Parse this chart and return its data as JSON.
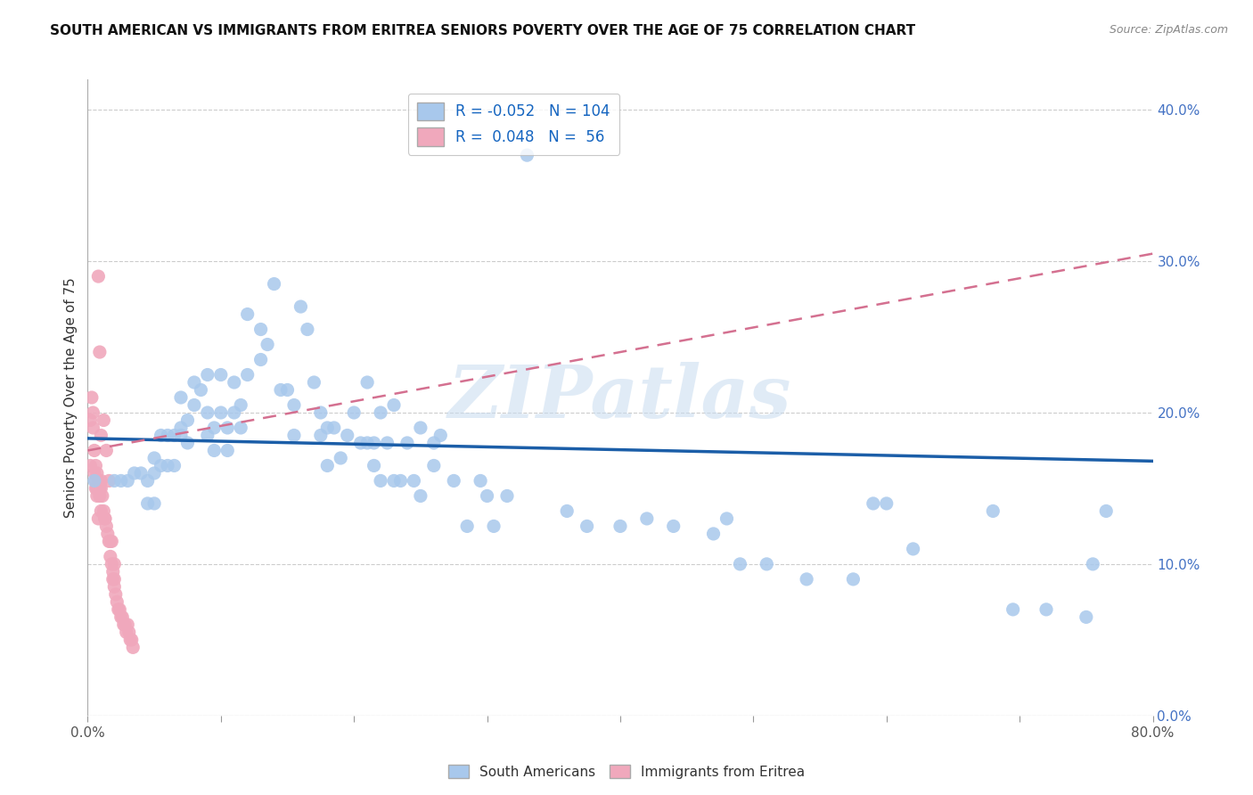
{
  "title": "SOUTH AMERICAN VS IMMIGRANTS FROM ERITREA SENIORS POVERTY OVER THE AGE OF 75 CORRELATION CHART",
  "source": "Source: ZipAtlas.com",
  "ylabel": "Seniors Poverty Over the Age of 75",
  "xmin": 0.0,
  "xmax": 0.8,
  "ymin": 0.0,
  "ymax": 0.42,
  "xtick_labels_left": "0.0%",
  "xtick_labels_right": "80.0%",
  "yticks": [
    0.0,
    0.1,
    0.2,
    0.3,
    0.4
  ],
  "blue_R": -0.052,
  "blue_N": 104,
  "pink_R": 0.048,
  "pink_N": 56,
  "blue_color": "#A8C8EC",
  "pink_color": "#F0A8BC",
  "blue_line_color": "#1B5EA8",
  "pink_line_color": "#D47090",
  "legend_label_blue": "South Americans",
  "legend_label_pink": "Immigrants from Eritrea",
  "watermark": "ZIPatlas",
  "blue_line_x0": 0.0,
  "blue_line_y0": 0.183,
  "blue_line_x1": 0.8,
  "blue_line_y1": 0.168,
  "pink_line_x0": 0.0,
  "pink_line_y0": 0.175,
  "pink_line_x1": 0.8,
  "pink_line_y1": 0.305,
  "blue_scatter_x": [
    0.005,
    0.02,
    0.025,
    0.03,
    0.035,
    0.04,
    0.045,
    0.045,
    0.05,
    0.05,
    0.05,
    0.055,
    0.055,
    0.06,
    0.06,
    0.065,
    0.065,
    0.07,
    0.07,
    0.07,
    0.075,
    0.075,
    0.08,
    0.08,
    0.085,
    0.09,
    0.09,
    0.09,
    0.095,
    0.095,
    0.1,
    0.1,
    0.105,
    0.105,
    0.11,
    0.11,
    0.115,
    0.115,
    0.12,
    0.12,
    0.13,
    0.13,
    0.135,
    0.14,
    0.145,
    0.15,
    0.155,
    0.155,
    0.16,
    0.165,
    0.17,
    0.175,
    0.18,
    0.185,
    0.19,
    0.195,
    0.2,
    0.205,
    0.21,
    0.215,
    0.215,
    0.22,
    0.225,
    0.23,
    0.235,
    0.24,
    0.245,
    0.25,
    0.26,
    0.265,
    0.275,
    0.285,
    0.295,
    0.3,
    0.305,
    0.315,
    0.33,
    0.36,
    0.375,
    0.4,
    0.42,
    0.44,
    0.47,
    0.48,
    0.49,
    0.51,
    0.54,
    0.575,
    0.59,
    0.6,
    0.62,
    0.68,
    0.695,
    0.72,
    0.75,
    0.755,
    0.765,
    0.22,
    0.25,
    0.26,
    0.21,
    0.23,
    0.175,
    0.18
  ],
  "blue_scatter_y": [
    0.155,
    0.155,
    0.155,
    0.155,
    0.16,
    0.16,
    0.155,
    0.14,
    0.17,
    0.16,
    0.14,
    0.185,
    0.165,
    0.185,
    0.165,
    0.185,
    0.165,
    0.19,
    0.21,
    0.185,
    0.18,
    0.195,
    0.205,
    0.22,
    0.215,
    0.185,
    0.225,
    0.2,
    0.175,
    0.19,
    0.2,
    0.225,
    0.175,
    0.19,
    0.2,
    0.22,
    0.205,
    0.19,
    0.225,
    0.265,
    0.255,
    0.235,
    0.245,
    0.285,
    0.215,
    0.215,
    0.185,
    0.205,
    0.27,
    0.255,
    0.22,
    0.2,
    0.19,
    0.19,
    0.17,
    0.185,
    0.2,
    0.18,
    0.18,
    0.165,
    0.18,
    0.155,
    0.18,
    0.155,
    0.155,
    0.18,
    0.155,
    0.145,
    0.165,
    0.185,
    0.155,
    0.125,
    0.155,
    0.145,
    0.125,
    0.145,
    0.37,
    0.135,
    0.125,
    0.125,
    0.13,
    0.125,
    0.12,
    0.13,
    0.1,
    0.1,
    0.09,
    0.09,
    0.14,
    0.14,
    0.11,
    0.135,
    0.07,
    0.07,
    0.065,
    0.1,
    0.135,
    0.2,
    0.19,
    0.18,
    0.22,
    0.205,
    0.185,
    0.165
  ],
  "pink_scatter_x": [
    0.002,
    0.002,
    0.003,
    0.004,
    0.004,
    0.005,
    0.005,
    0.006,
    0.006,
    0.006,
    0.007,
    0.007,
    0.007,
    0.008,
    0.008,
    0.009,
    0.009,
    0.01,
    0.01,
    0.01,
    0.011,
    0.012,
    0.013,
    0.013,
    0.014,
    0.015,
    0.016,
    0.017,
    0.017,
    0.018,
    0.019,
    0.019,
    0.02,
    0.02,
    0.021,
    0.022,
    0.023,
    0.024,
    0.025,
    0.026,
    0.027,
    0.028,
    0.029,
    0.03,
    0.031,
    0.032,
    0.033,
    0.034,
    0.008,
    0.009,
    0.01,
    0.012,
    0.014,
    0.016,
    0.018,
    0.02
  ],
  "pink_scatter_y": [
    0.195,
    0.165,
    0.21,
    0.2,
    0.19,
    0.175,
    0.16,
    0.165,
    0.155,
    0.15,
    0.16,
    0.15,
    0.145,
    0.155,
    0.13,
    0.145,
    0.15,
    0.155,
    0.15,
    0.135,
    0.145,
    0.135,
    0.13,
    0.13,
    0.125,
    0.12,
    0.115,
    0.105,
    0.115,
    0.1,
    0.095,
    0.09,
    0.085,
    0.09,
    0.08,
    0.075,
    0.07,
    0.07,
    0.065,
    0.065,
    0.06,
    0.06,
    0.055,
    0.06,
    0.055,
    0.05,
    0.05,
    0.045,
    0.29,
    0.24,
    0.185,
    0.195,
    0.175,
    0.155,
    0.115,
    0.1
  ]
}
